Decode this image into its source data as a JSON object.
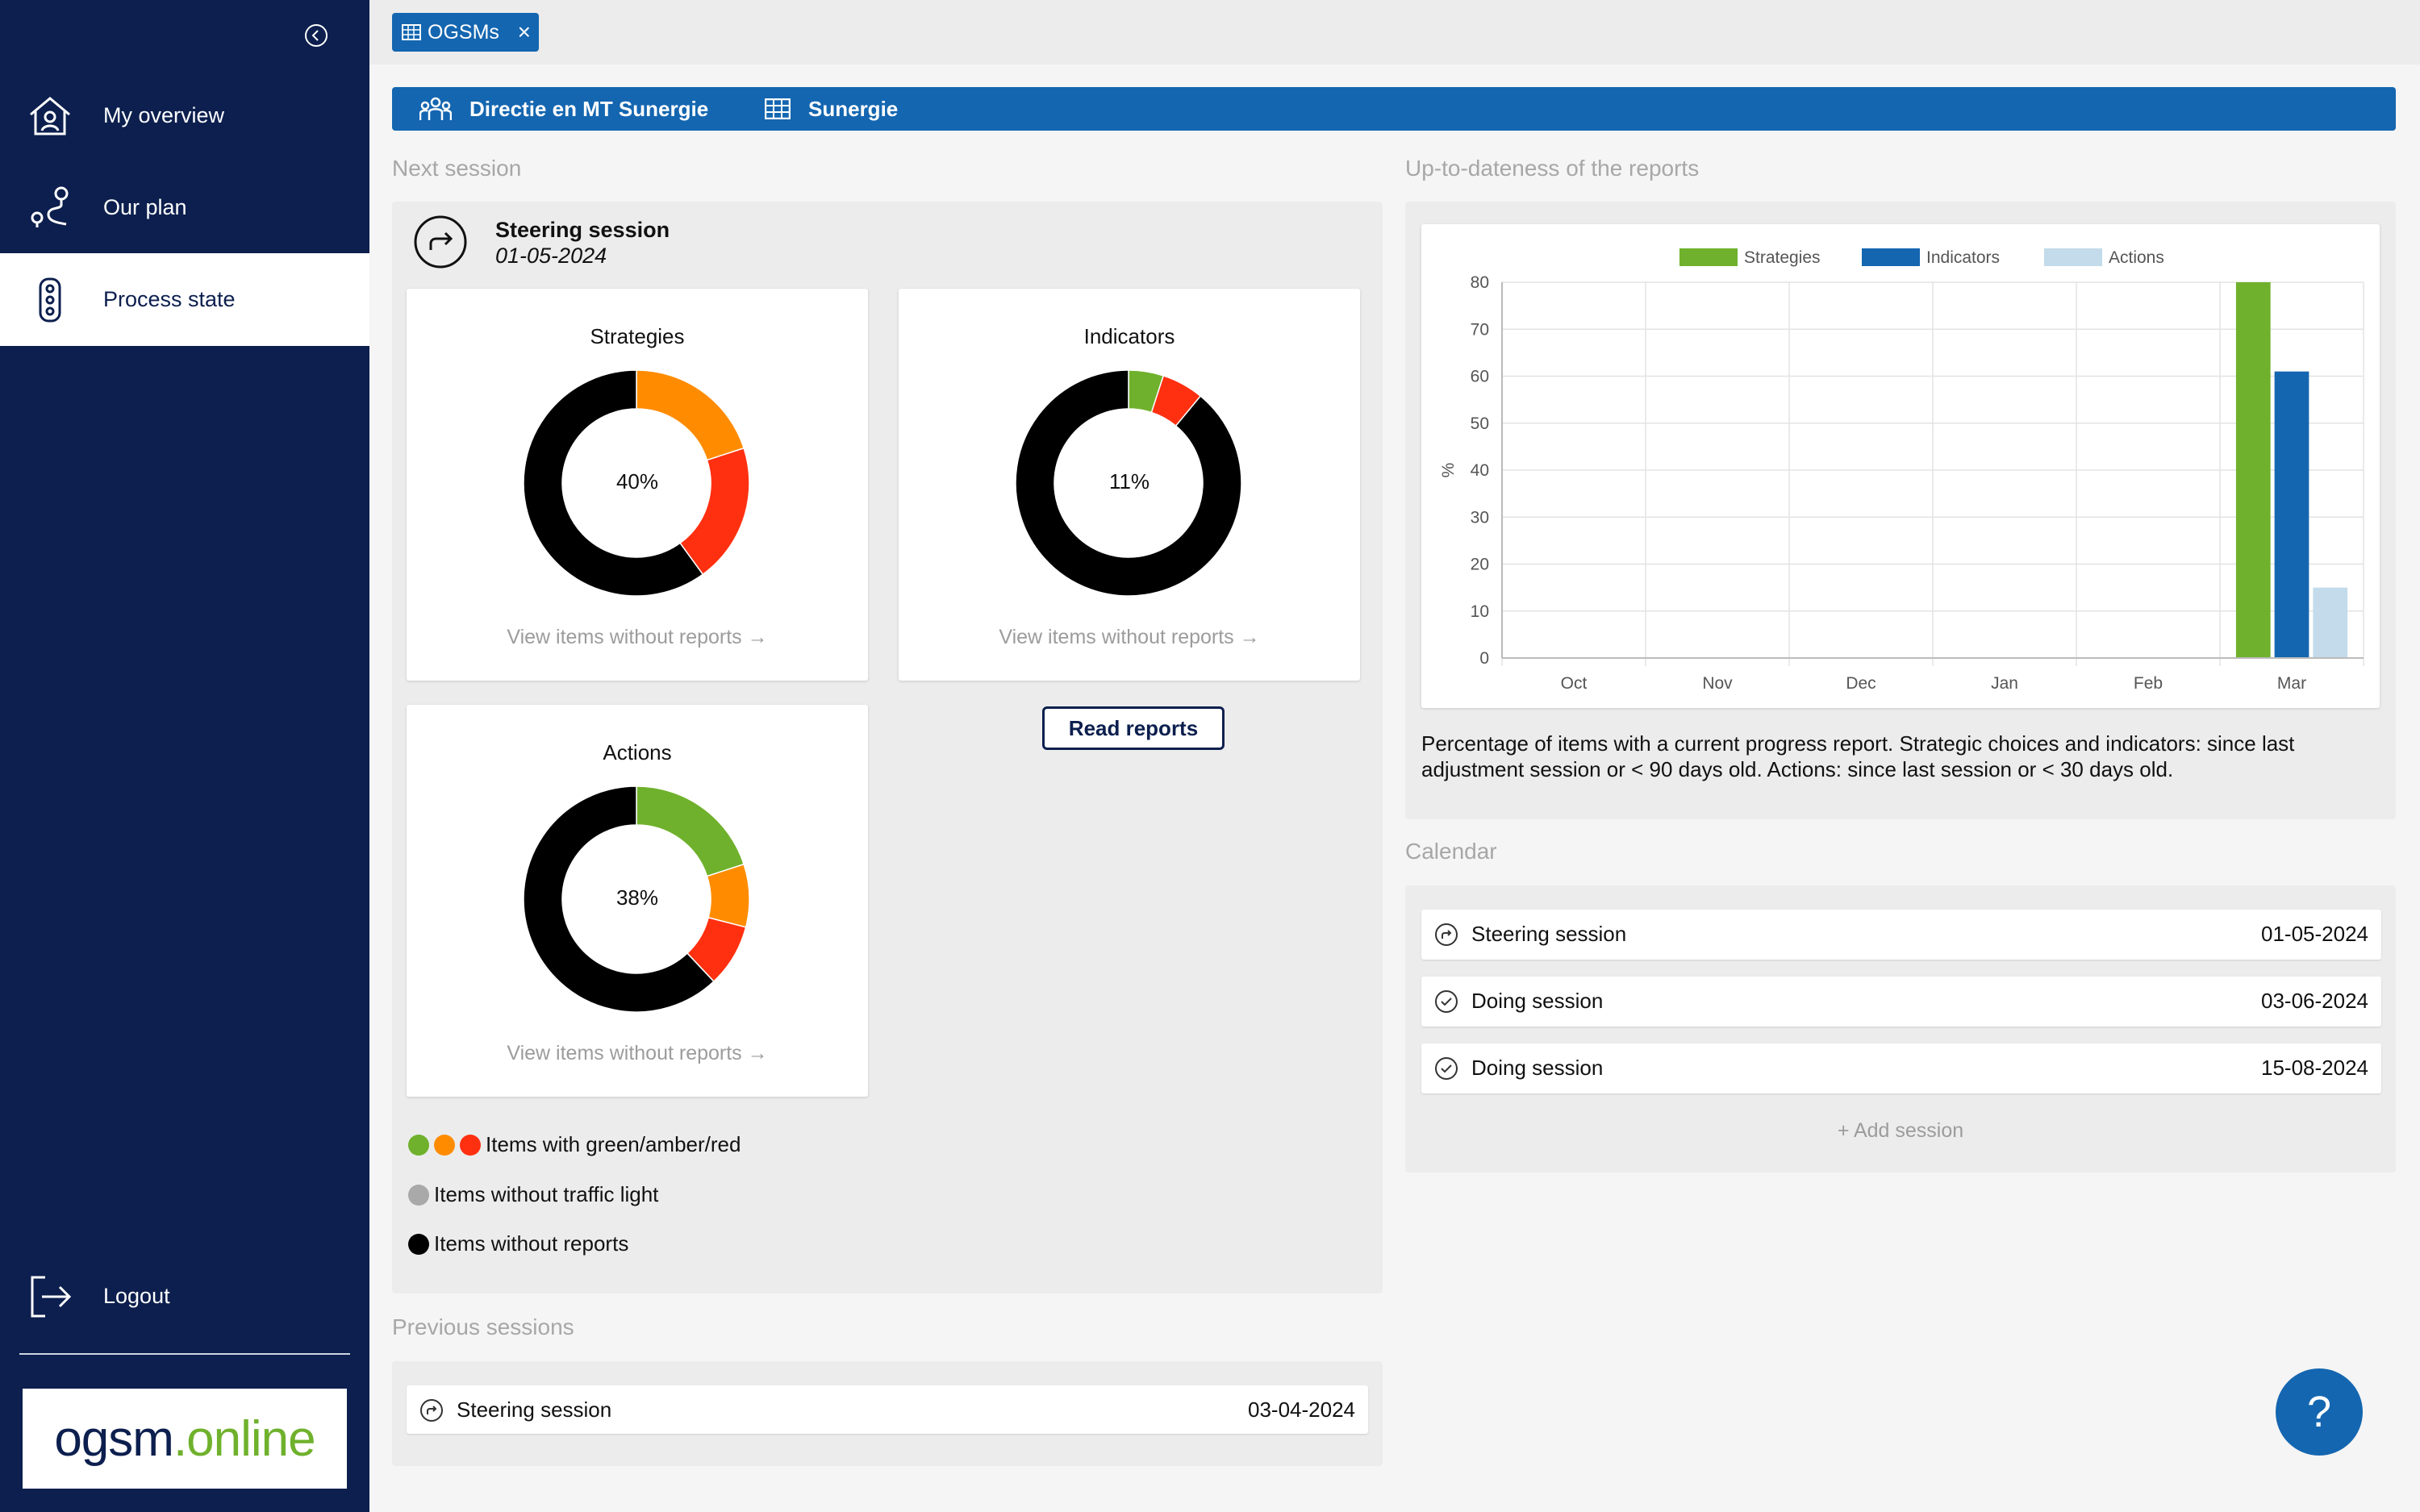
{
  "sidebar": {
    "nav": [
      {
        "label": "My overview"
      },
      {
        "label": "Our plan"
      },
      {
        "label": "Process state"
      }
    ],
    "logout_label": "Logout",
    "logo": {
      "part1": "ogsm",
      "dot": ".",
      "part2": "online"
    }
  },
  "tab": {
    "label": "OGSMs",
    "close": "×"
  },
  "org_bar": {
    "group": "Directie en MT Sunergie",
    "org": "Sunergie"
  },
  "next_session": {
    "section_title": "Next session",
    "type": "Steering session",
    "date": "01-05-2024",
    "cards": [
      {
        "title": "Strategies",
        "percent": "40%",
        "link": "View items without reports →",
        "segments": [
          {
            "color": "#ff8c00",
            "value": 20
          },
          {
            "color": "#ff3010",
            "value": 20
          },
          {
            "color": "#000000",
            "value": 60
          }
        ]
      },
      {
        "title": "Indicators",
        "percent": "11%",
        "link": "View items without reports →",
        "segments": [
          {
            "color": "#6fb12c",
            "value": 5
          },
          {
            "color": "#ff3010",
            "value": 6
          },
          {
            "color": "#000000",
            "value": 89
          }
        ]
      },
      {
        "title": "Actions",
        "percent": "38%",
        "link": "View items without reports →",
        "segments": [
          {
            "color": "#6fb12c",
            "value": 20
          },
          {
            "color": "#ff8c00",
            "value": 9
          },
          {
            "color": "#ff3010",
            "value": 9
          },
          {
            "color": "#000000",
            "value": 62
          }
        ]
      }
    ],
    "read_reports_label": "Read reports",
    "legend": [
      {
        "label": "Items with green/amber/red",
        "colors": [
          "#6fb12c",
          "#ff8c00",
          "#ff3010"
        ]
      },
      {
        "label": "Items without traffic light",
        "colors": [
          "#a9a9a9"
        ]
      },
      {
        "label": "Items without reports",
        "colors": [
          "#000000"
        ]
      }
    ]
  },
  "previous_sessions": {
    "section_title": "Previous sessions",
    "rows": [
      {
        "label": "Steering session",
        "date": "03-04-2024"
      }
    ]
  },
  "uptodate": {
    "section_title": "Up-to-dateness of the reports",
    "description": "Percentage of items with a current progress report. Strategic choices and indicators: since last adjustment session or < 90 days old. Actions: since last session or < 30 days old."
  },
  "chart_data": {
    "type": "bar",
    "categories": [
      "Oct",
      "Nov",
      "Dec",
      "Jan",
      "Feb",
      "Mar"
    ],
    "series": [
      {
        "name": "Strategies",
        "color": "#6fb12c",
        "values": [
          0,
          0,
          0,
          0,
          0,
          80
        ]
      },
      {
        "name": "Indicators",
        "color": "#1466b0",
        "values": [
          0,
          0,
          0,
          0,
          0,
          61
        ]
      },
      {
        "name": "Actions",
        "color": "#c3dbea",
        "values": [
          0,
          0,
          0,
          0,
          0,
          15
        ]
      }
    ],
    "ylabel": "%",
    "ylim": [
      0,
      80
    ],
    "yticks": [
      0,
      10,
      20,
      30,
      40,
      50,
      60,
      70,
      80
    ],
    "grid": true,
    "legend": "top-center"
  },
  "calendar": {
    "section_title": "Calendar",
    "rows": [
      {
        "label": "Steering session",
        "date": "01-05-2024",
        "icon": "steering-icon"
      },
      {
        "label": "Doing session",
        "date": "03-06-2024",
        "icon": "check-circle-icon"
      },
      {
        "label": "Doing session",
        "date": "15-08-2024",
        "icon": "check-circle-icon"
      }
    ],
    "add_label": "+ Add session"
  },
  "help": {
    "label": "?"
  }
}
